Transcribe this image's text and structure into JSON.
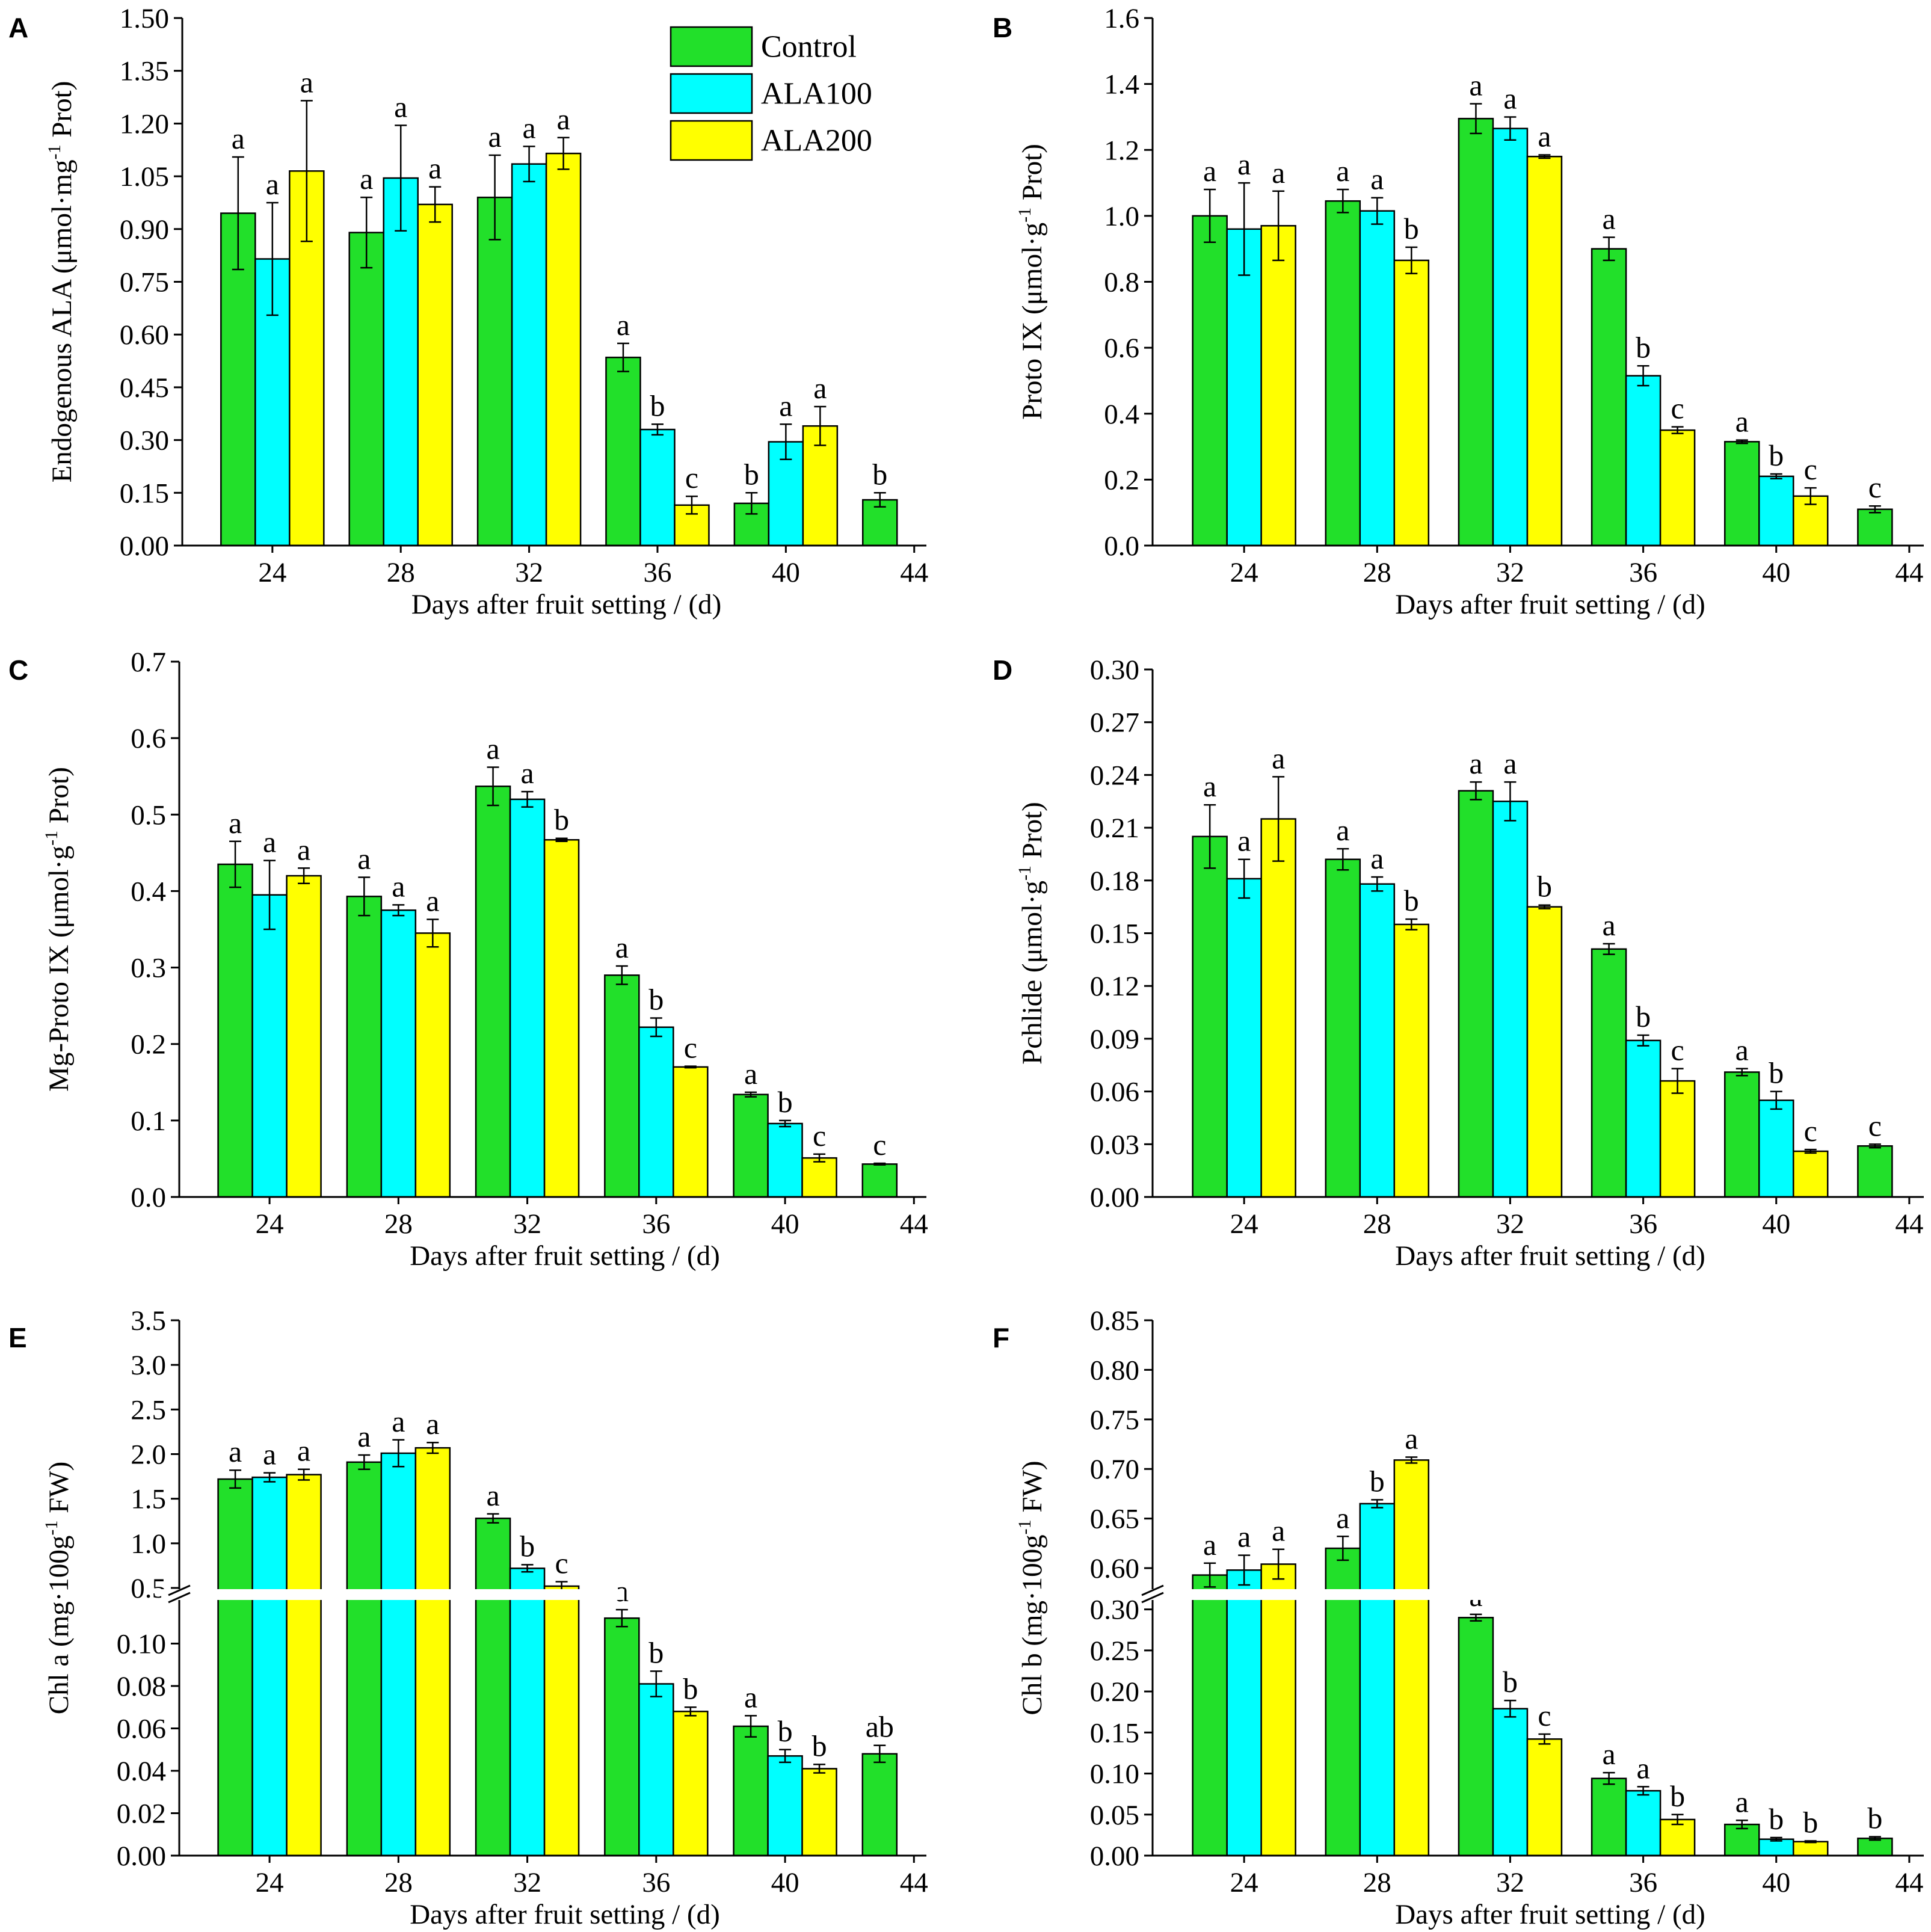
{
  "legend": {
    "entries": [
      {
        "name": "Control",
        "color": "#22e02a"
      },
      {
        "name": "ALA100",
        "color": "#00ffff"
      },
      {
        "name": "ALA200",
        "color": "#ffff00"
      }
    ],
    "position": "top-right of panel A"
  },
  "chart_data": [
    {
      "id": "A",
      "letter": "A",
      "type": "bar",
      "title": "",
      "xlabel": "Days after fruit setting / (d)",
      "ylabel": {
        "main": "Endogenous ALA (μmol·mg",
        "sup": "-1",
        "tail": " Prot)"
      },
      "categories": [
        "24",
        "28",
        "32",
        "36",
        "40",
        "44"
      ],
      "ylim": [
        0,
        1.5
      ],
      "yticks": [
        "0.00",
        "0.15",
        "0.30",
        "0.45",
        "0.60",
        "0.75",
        "0.90",
        "1.05",
        "1.20",
        "1.35",
        "1.50"
      ],
      "series": [
        {
          "name": "Control",
          "values": [
            0.945,
            0.89,
            0.99,
            0.535,
            0.12,
            0.13
          ],
          "errors": [
            0.16,
            0.1,
            0.12,
            0.04,
            0.03,
            0.02
          ],
          "letters": [
            "a",
            "a",
            "a",
            "a",
            "b",
            "b"
          ]
        },
        {
          "name": "ALA100",
          "values": [
            0.815,
            1.045,
            1.085,
            0.33,
            0.295,
            null
          ],
          "errors": [
            0.16,
            0.15,
            0.05,
            0.015,
            0.05,
            null
          ],
          "letters": [
            "a",
            "a",
            "a",
            "b",
            "a",
            ""
          ]
        },
        {
          "name": "ALA200",
          "values": [
            1.065,
            0.97,
            1.115,
            0.115,
            0.34,
            null
          ],
          "errors": [
            0.2,
            0.05,
            0.045,
            0.025,
            0.055,
            null
          ],
          "letters": [
            "a",
            "a",
            "a",
            "c",
            "a",
            ""
          ]
        }
      ]
    },
    {
      "id": "B",
      "letter": "B",
      "type": "bar",
      "title": "",
      "xlabel": "Days after fruit setting / (d)",
      "ylabel": {
        "main": "Proto IX (μmol·g",
        "sup": "-1",
        "tail": " Prot)"
      },
      "categories": [
        "24",
        "28",
        "32",
        "36",
        "40",
        "44"
      ],
      "ylim": [
        0,
        1.6
      ],
      "yticks": [
        "0.0",
        "0.2",
        "0.4",
        "0.6",
        "0.8",
        "1.0",
        "1.2",
        "1.4",
        "1.6"
      ],
      "series": [
        {
          "name": "Control",
          "values": [
            1.0,
            1.045,
            1.295,
            0.9,
            0.315,
            0.11
          ],
          "errors": [
            0.08,
            0.035,
            0.045,
            0.035,
            0.005,
            0.01
          ],
          "letters": [
            "a",
            "a",
            "a",
            "a",
            "a",
            "c"
          ]
        },
        {
          "name": "ALA100",
          "values": [
            0.96,
            1.015,
            1.265,
            0.515,
            0.21,
            null
          ],
          "errors": [
            0.14,
            0.04,
            0.035,
            0.03,
            0.007,
            null
          ],
          "letters": [
            "a",
            "a",
            "a",
            "b",
            "b",
            ""
          ]
        },
        {
          "name": "ALA200",
          "values": [
            0.97,
            0.865,
            1.18,
            0.35,
            0.15,
            null
          ],
          "errors": [
            0.105,
            0.04,
            0.005,
            0.01,
            0.025,
            null
          ],
          "letters": [
            "a",
            "b",
            "a",
            "c",
            "c",
            ""
          ]
        }
      ]
    },
    {
      "id": "C",
      "letter": "C",
      "type": "bar",
      "title": "",
      "xlabel": "Days after fruit setting / (d)",
      "ylabel": {
        "main": "Mg-Proto IX (μmol·g",
        "sup": "-1",
        "tail": " Prot)"
      },
      "categories": [
        "24",
        "28",
        "32",
        "36",
        "40",
        "44"
      ],
      "ylim": [
        0,
        0.7
      ],
      "yticks": [
        "0.0",
        "0.1",
        "0.2",
        "0.3",
        "0.4",
        "0.5",
        "0.6",
        "0.7"
      ],
      "series": [
        {
          "name": "Control",
          "values": [
            0.435,
            0.393,
            0.537,
            0.29,
            0.134,
            0.043
          ],
          "errors": [
            0.03,
            0.025,
            0.025,
            0.012,
            0.003,
            0.001
          ],
          "letters": [
            "a",
            "a",
            "a",
            "a",
            "a",
            "c"
          ]
        },
        {
          "name": "ALA100",
          "values": [
            0.395,
            0.375,
            0.52,
            0.222,
            0.096,
            null
          ],
          "errors": [
            0.045,
            0.007,
            0.01,
            0.012,
            0.004,
            null
          ],
          "letters": [
            "a",
            "a",
            "a",
            "b",
            "b",
            ""
          ]
        },
        {
          "name": "ALA200",
          "values": [
            0.42,
            0.345,
            0.467,
            0.17,
            0.051,
            null
          ],
          "errors": [
            0.01,
            0.018,
            0.002,
            0.001,
            0.005,
            null
          ],
          "letters": [
            "a",
            "a",
            "b",
            "c",
            "c",
            ""
          ]
        }
      ]
    },
    {
      "id": "D",
      "letter": "D",
      "type": "bar",
      "title": "",
      "xlabel": "Days after fruit setting / (d)",
      "ylabel": {
        "main": "Pchlide (μmol·g",
        "sup": "-1",
        "tail": " Prot)"
      },
      "categories": [
        "24",
        "28",
        "32",
        "36",
        "40",
        "44"
      ],
      "ylim": [
        0,
        0.3
      ],
      "yticks": [
        "0.00",
        "0.03",
        "0.06",
        "0.09",
        "0.12",
        "0.15",
        "0.18",
        "0.21",
        "0.24",
        "0.27",
        "0.30"
      ],
      "series": [
        {
          "name": "Control",
          "values": [
            0.205,
            0.192,
            0.231,
            0.141,
            0.071,
            0.029
          ],
          "errors": [
            0.018,
            0.006,
            0.005,
            0.003,
            0.002,
            0.001
          ],
          "letters": [
            "a",
            "a",
            "a",
            "a",
            "a",
            "c"
          ]
        },
        {
          "name": "ALA100",
          "values": [
            0.181,
            0.178,
            0.225,
            0.089,
            0.055,
            null
          ],
          "errors": [
            0.011,
            0.004,
            0.011,
            0.003,
            0.005,
            null
          ],
          "letters": [
            "a",
            "a",
            "a",
            "b",
            "b",
            ""
          ]
        },
        {
          "name": "ALA200",
          "values": [
            0.215,
            0.155,
            0.165,
            0.066,
            0.026,
            null
          ],
          "errors": [
            0.024,
            0.003,
            0.001,
            0.007,
            0.001,
            null
          ],
          "letters": [
            "a",
            "b",
            "b",
            "c",
            "c",
            ""
          ]
        }
      ]
    },
    {
      "id": "E",
      "letter": "E",
      "type": "bar",
      "title": "",
      "xlabel": "Days after fruit setting / (d)",
      "ylabel": {
        "main": "Chl a (mg·100g",
        "sup": "-1",
        "tail": " FW)"
      },
      "categories": [
        "24",
        "28",
        "32",
        "36",
        "40",
        "44"
      ],
      "broken_axis": true,
      "ylim_lower": [
        0,
        0.12
      ],
      "ylim_upper": [
        0.5,
        3.5
      ],
      "yticks_lower": [
        "0.00",
        "0.02",
        "0.04",
        "0.06",
        "0.08",
        "0.10"
      ],
      "yticks_upper": [
        "0.5",
        "1.0",
        "1.5",
        "2.0",
        "2.5",
        "3.0",
        "3.5"
      ],
      "series": [
        {
          "name": "Control",
          "values": [
            1.72,
            1.91,
            1.28,
            0.112,
            0.061,
            0.048
          ],
          "errors": [
            0.1,
            0.08,
            0.05,
            0.004,
            0.005,
            0.004
          ],
          "letters": [
            "a",
            "a",
            "a",
            "a",
            "a",
            "ab"
          ]
        },
        {
          "name": "ALA100",
          "values": [
            1.74,
            2.01,
            0.72,
            0.081,
            0.047,
            null
          ],
          "errors": [
            0.05,
            0.15,
            0.04,
            0.006,
            0.003,
            null
          ],
          "letters": [
            "a",
            "a",
            "b",
            "b",
            "b",
            ""
          ]
        },
        {
          "name": "ALA200",
          "values": [
            1.77,
            2.07,
            0.52,
            0.068,
            0.041,
            null
          ],
          "errors": [
            0.06,
            0.06,
            0.05,
            0.002,
            0.002,
            null
          ],
          "letters": [
            "a",
            "a",
            "c",
            "b",
            "b",
            ""
          ]
        }
      ]
    },
    {
      "id": "F",
      "letter": "F",
      "type": "bar",
      "title": "",
      "xlabel": "Days after fruit setting / (d)",
      "ylabel": {
        "main": "Chl b (mg·100g",
        "sup": "-1",
        "tail": " FW)"
      },
      "categories": [
        "24",
        "28",
        "32",
        "36",
        "40",
        "44"
      ],
      "broken_axis": true,
      "ylim_lower": [
        0,
        0.31
      ],
      "ylim_upper": [
        0.58,
        0.85
      ],
      "yticks_lower": [
        "0.00",
        "0.05",
        "0.10",
        "0.15",
        "0.20",
        "0.25",
        "0.30"
      ],
      "yticks_upper": [
        "0.60",
        "0.65",
        "0.70",
        "0.75",
        "0.80",
        "0.85"
      ],
      "series": [
        {
          "name": "Control",
          "values": [
            0.593,
            0.62,
            0.29,
            0.094,
            0.038,
            0.021
          ],
          "errors": [
            0.012,
            0.012,
            0.004,
            0.007,
            0.005,
            0.002
          ],
          "letters": [
            "a",
            "a",
            "a",
            "a",
            "a",
            "b"
          ]
        },
        {
          "name": "ALA100",
          "values": [
            0.598,
            0.665,
            0.179,
            0.079,
            0.02,
            null
          ],
          "errors": [
            0.015,
            0.004,
            0.01,
            0.005,
            0.002,
            null
          ],
          "letters": [
            "a",
            "b",
            "b",
            "a",
            "b",
            ""
          ]
        },
        {
          "name": "ALA200",
          "values": [
            0.604,
            0.709,
            0.142,
            0.044,
            0.017,
            null
          ],
          "errors": [
            0.015,
            0.003,
            0.006,
            0.006,
            0.001,
            null
          ],
          "letters": [
            "a",
            "a",
            "c",
            "b",
            "b",
            ""
          ]
        }
      ]
    }
  ]
}
